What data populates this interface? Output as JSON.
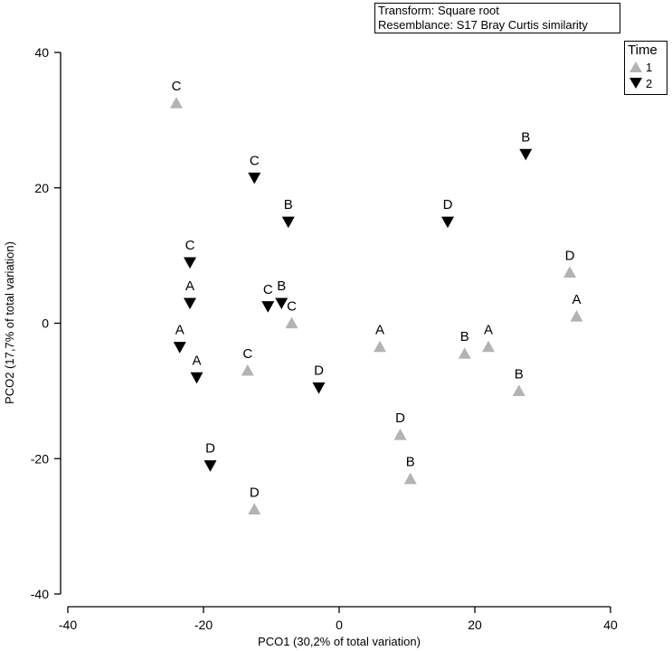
{
  "chart_data": {
    "type": "scatter",
    "title": "",
    "xlabel": "PCO1 (30,2% of total variation)",
    "ylabel": "PCO2 (17,7% of total variation)",
    "xlim": [
      -40,
      40
    ],
    "ylim": [
      -40,
      40
    ],
    "x_ticks": [
      -40,
      -20,
      0,
      20,
      40
    ],
    "y_ticks": [
      -40,
      -20,
      0,
      20,
      40
    ],
    "grid": false,
    "legend_position": "top-right",
    "legend_title": "Time",
    "info": [
      "Transform: Square root",
      "Resemblance: S17 Bray Curtis similarity"
    ],
    "series": [
      {
        "name": "1",
        "marker": "triangle-up",
        "color": "#b3b3b3",
        "points": [
          {
            "x": -24.0,
            "y": 32.5,
            "label": "C"
          },
          {
            "x": -13.5,
            "y": -7.0,
            "label": "C"
          },
          {
            "x": -7.0,
            "y": 0.0,
            "label": "C"
          },
          {
            "x": -12.5,
            "y": -27.5,
            "label": "D"
          },
          {
            "x": 6.0,
            "y": -3.5,
            "label": "A"
          },
          {
            "x": 9.0,
            "y": -16.5,
            "label": "D"
          },
          {
            "x": 10.5,
            "y": -23.0,
            "label": "B"
          },
          {
            "x": 18.5,
            "y": -4.5,
            "label": "B"
          },
          {
            "x": 22.0,
            "y": -3.5,
            "label": "A"
          },
          {
            "x": 26.5,
            "y": -10.0,
            "label": "B"
          },
          {
            "x": 34.0,
            "y": 7.5,
            "label": "D"
          },
          {
            "x": 35.0,
            "y": 1.0,
            "label": "A"
          }
        ]
      },
      {
        "name": "2",
        "marker": "triangle-down",
        "color": "#000000",
        "points": [
          {
            "x": -12.5,
            "y": 21.5,
            "label": "C"
          },
          {
            "x": -7.5,
            "y": 15.0,
            "label": "B"
          },
          {
            "x": -22.0,
            "y": 9.0,
            "label": "C"
          },
          {
            "x": -22.0,
            "y": 3.0,
            "label": "A"
          },
          {
            "x": -10.5,
            "y": 2.5,
            "label": "C"
          },
          {
            "x": -8.5,
            "y": 3.0,
            "label": "B"
          },
          {
            "x": -23.5,
            "y": -3.5,
            "label": "A"
          },
          {
            "x": -21.0,
            "y": -8.0,
            "label": "A"
          },
          {
            "x": -3.0,
            "y": -9.5,
            "label": "D"
          },
          {
            "x": -19.0,
            "y": -21.0,
            "label": "D"
          },
          {
            "x": 16.0,
            "y": 15.0,
            "label": "D"
          },
          {
            "x": 27.5,
            "y": 25.0,
            "label": "B"
          }
        ]
      }
    ]
  }
}
